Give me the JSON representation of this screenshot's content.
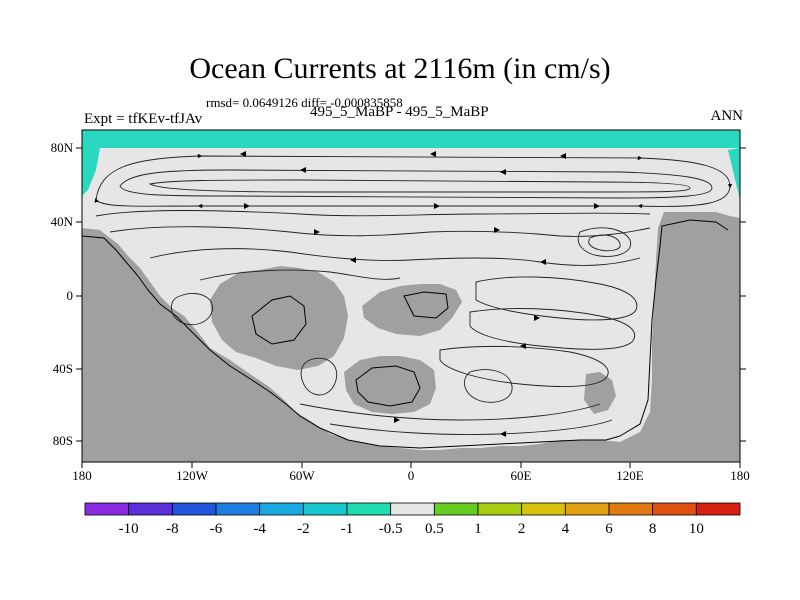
{
  "title": "Ocean Currents at 2116m (in cm/s)",
  "stats": "rmsd= 0.0649126 diff= -0.000835858",
  "expt": "Expt = tfKEv-tfJAv",
  "case_id": "495_5_MaBP - 495_5_MaBP",
  "season": "ANN",
  "lat_labels": [
    "80N",
    "40N",
    "0",
    "40S",
    "80S"
  ],
  "lon_labels": [
    "180",
    "120W",
    "60W",
    "0",
    "60E",
    "120E",
    "180"
  ],
  "colorbar": {
    "labels": [
      "-10",
      "-8",
      "-6",
      "-4",
      "-2",
      "-1",
      "-0.5",
      "0.5",
      "1",
      "2",
      "4",
      "6",
      "8",
      "10"
    ],
    "colors": [
      "#8a2be2",
      "#5a30d8",
      "#2255dd",
      "#1c7fe0",
      "#19a8e0",
      "#18c8d0",
      "#1edcb0",
      "#e6e6e6",
      "#66cc22",
      "#a8cc10",
      "#d4c20c",
      "#e0a010",
      "#e07a10",
      "#e05010",
      "#d82010"
    ]
  },
  "colors": {
    "land": "#a0a0a0",
    "ocean": "#e6e6e6",
    "arctic_band": "#2ad8c0"
  }
}
